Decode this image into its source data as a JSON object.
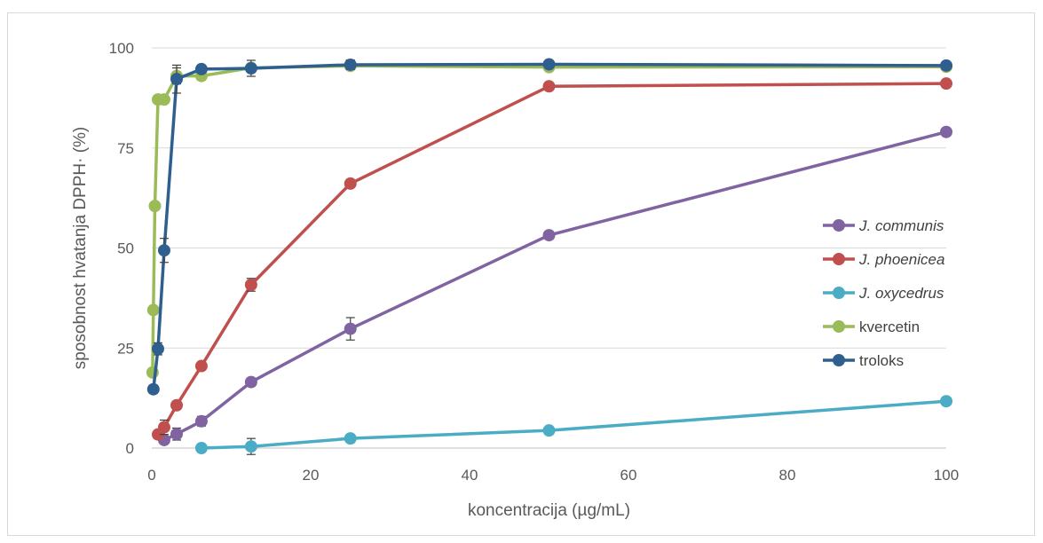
{
  "chart_data": {
    "type": "line",
    "title": "",
    "xlabel": "koncentracija (µg/mL)",
    "ylabel": "sposobnost hvatanja DPPH· (%)",
    "xlim": [
      0,
      100
    ],
    "ylim": [
      0,
      100
    ],
    "x_ticks": [
      0,
      20,
      40,
      60,
      80,
      100
    ],
    "y_ticks": [
      0,
      25,
      50,
      75,
      100
    ],
    "grid": "horizontal",
    "legend_position": "right",
    "series": [
      {
        "name": "J. communis",
        "italic": true,
        "color": "#8064a2",
        "x": [
          1.56,
          3.13,
          6.25,
          12.5,
          25,
          50,
          100
        ],
        "y": [
          2,
          3.5,
          6.7,
          16.5,
          29.8,
          53.2,
          79
        ],
        "err": [
          0.8,
          1.5,
          1.2,
          1.0,
          2.8,
          1.0,
          1.0
        ]
      },
      {
        "name": "J. phoenicea",
        "italic": true,
        "color": "#c0504d",
        "x": [
          0.78,
          1.56,
          3.13,
          6.25,
          12.5,
          25,
          50,
          100
        ],
        "y": [
          3.4,
          5.2,
          10.7,
          20.5,
          40.8,
          66.1,
          90.4,
          91.1
        ],
        "err": [
          1.0,
          1.8,
          1.0,
          1.0,
          1.6,
          1.0,
          1.0,
          0.8
        ]
      },
      {
        "name": "J. oxycedrus",
        "italic": true,
        "color": "#4bacc6",
        "x": [
          6.25,
          12.5,
          25,
          50,
          100
        ],
        "y": [
          0,
          0.4,
          2.4,
          4.4,
          11.7
        ],
        "err": [
          0.5,
          2.0,
          1.0,
          0.5,
          0.5
        ]
      },
      {
        "name": "kvercetin",
        "italic": false,
        "color": "#9bbb59",
        "x": [
          0.1,
          0.2,
          0.39,
          0.78,
          1.56,
          3.13,
          6.25,
          12.5,
          25,
          50,
          100
        ],
        "y": [
          18.9,
          34.5,
          60.5,
          87.1,
          87.1,
          93,
          93,
          95,
          95.5,
          95.2,
          95.3
        ],
        "err": [
          0.5,
          0.5,
          0.5,
          0.5,
          0.5,
          2.0,
          1.0,
          1.0,
          0.5,
          0.5,
          0.5
        ]
      },
      {
        "name": "troloks",
        "italic": false,
        "color": "#2e5f8e",
        "x": [
          0.2,
          0.78,
          1.56,
          3.13,
          6.25,
          12.5,
          25,
          50,
          100
        ],
        "y": [
          14.7,
          24.8,
          49.4,
          92.2,
          94.7,
          94.9,
          95.8,
          95.9,
          95.6
        ],
        "err": [
          1.0,
          1.5,
          3.0,
          3.5,
          1.0,
          2.0,
          1.2,
          0.5,
          0.5
        ]
      }
    ]
  }
}
